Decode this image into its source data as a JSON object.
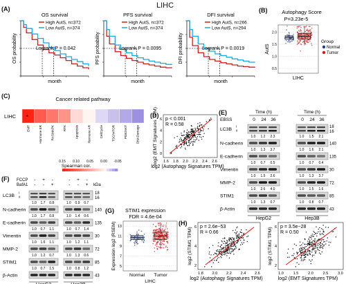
{
  "figure_title": "LIHC",
  "panel_labels": {
    "A": "(A)",
    "B": "(B)",
    "C": "(C)",
    "D": "(D)",
    "E": "(E)",
    "F": "(F)",
    "G": "(G)",
    "H": "(H)"
  },
  "colors": {
    "high": "#c8201e",
    "low": "#1fa7e1",
    "normal": "#1f3e8f",
    "tumor": "#c8201e",
    "fit": "#e02020",
    "band": "#1a1a1a"
  },
  "chart_data": [
    {
      "type": "line",
      "title": "OS survival",
      "xlabel": "month",
      "ylabel": "OS probability",
      "xlim": [
        0,
        120
      ],
      "ylim": [
        0,
        1
      ],
      "legend": [
        "High AutS, n=372",
        "Low AutS, n=374"
      ],
      "annotation": "Logrank  P = 0.042",
      "series": [
        {
          "name": "High AutS, n=372",
          "x": [
            0,
            5,
            10,
            20,
            30,
            40,
            50,
            60,
            70,
            80,
            90,
            100,
            110,
            120
          ],
          "values": [
            1,
            0.88,
            0.78,
            0.66,
            0.56,
            0.48,
            0.42,
            0.38,
            0.33,
            0.28,
            0.22,
            0.18,
            0.15,
            0.12
          ]
        },
        {
          "name": "Low AutS, n=374",
          "x": [
            0,
            5,
            10,
            20,
            30,
            40,
            50,
            60,
            70,
            80,
            90,
            100,
            110,
            120
          ],
          "values": [
            1,
            0.93,
            0.86,
            0.76,
            0.68,
            0.6,
            0.52,
            0.46,
            0.4,
            0.35,
            0.3,
            0.26,
            0.22,
            0.18
          ]
        }
      ]
    },
    {
      "type": "line",
      "title": "PFS survival",
      "xlabel": "month",
      "ylabel": "PFS probability",
      "xlim": [
        0,
        120
      ],
      "ylim": [
        0,
        1
      ],
      "legend": [
        "High AutS, n=372",
        "Low AutS, n=374"
      ],
      "annotation": "Logrank  P = 0.0095",
      "series": [
        {
          "name": "High AutS, n=372",
          "x": [
            0,
            5,
            10,
            20,
            30,
            40,
            50,
            60,
            70,
            80,
            90,
            100,
            110,
            120
          ],
          "values": [
            1,
            0.72,
            0.58,
            0.44,
            0.37,
            0.32,
            0.28,
            0.25,
            0.22,
            0.2,
            0.18,
            0.16,
            0.15,
            0.14
          ]
        },
        {
          "name": "Low AutS, n=374",
          "x": [
            0,
            5,
            10,
            20,
            30,
            40,
            50,
            60,
            70,
            80,
            90,
            100,
            110,
            120
          ],
          "values": [
            1,
            0.84,
            0.72,
            0.56,
            0.48,
            0.42,
            0.37,
            0.33,
            0.3,
            0.27,
            0.25,
            0.23,
            0.21,
            0.2
          ]
        }
      ]
    },
    {
      "type": "line",
      "title": "DFI survival",
      "xlabel": "month",
      "ylabel": "DFI probability",
      "xlim": [
        0,
        120
      ],
      "ylim": [
        0,
        1
      ],
      "legend": [
        "High AutS, n=266",
        "Low AutS, n=294"
      ],
      "annotation": "Logrank  P = 0.0019",
      "series": [
        {
          "name": "High AutS, n=266",
          "x": [
            0,
            5,
            10,
            20,
            30,
            40,
            50,
            60,
            70,
            80,
            90,
            100,
            110,
            120
          ],
          "values": [
            1,
            0.7,
            0.55,
            0.42,
            0.35,
            0.3,
            0.27,
            0.24,
            0.22,
            0.2,
            0.18,
            0.17,
            0.16,
            0.15
          ]
        },
        {
          "name": "Low AutS, n=294",
          "x": [
            0,
            5,
            10,
            20,
            30,
            40,
            50,
            60,
            70,
            80,
            90,
            100,
            110,
            120
          ],
          "values": [
            1,
            0.84,
            0.72,
            0.58,
            0.5,
            0.45,
            0.4,
            0.37,
            0.34,
            0.31,
            0.29,
            0.27,
            0.25,
            0.24
          ]
        }
      ]
    },
    {
      "type": "box",
      "title": "Autophagy Score",
      "annotation": "P=3.23e-5",
      "ylabel": "AutS",
      "xlabel": "LIHC",
      "legend_title": "Group",
      "legend": [
        "Normal",
        "Tumor"
      ],
      "yticks": [
        0.5,
        1.0,
        1.5,
        2.0
      ],
      "ylim": [
        0.3,
        2.3
      ],
      "series": [
        {
          "name": "Normal",
          "q1": 1.7,
          "median": 1.79,
          "q3": 1.85,
          "min": 1.55,
          "max": 1.98
        },
        {
          "name": "Tumor",
          "q1": 1.7,
          "median": 1.82,
          "q3": 1.95,
          "min": 1.45,
          "max": 2.2
        }
      ]
    },
    {
      "type": "heatmap",
      "title": "Cancer related pathway",
      "row": "LIHC",
      "categories": [
        "EMT",
        "Hormone ER",
        "RASMAPK",
        "RTK",
        "Apoptosis",
        "Hormone AR",
        "CellCycle",
        "TSC/mTOR",
        "PI3K/AKT",
        "DNADamage"
      ],
      "values": [
        0.15,
        0.11,
        0.09,
        0.07,
        0.02,
        0.0,
        -0.01,
        -0.02,
        -0.03,
        -0.04
      ],
      "legend_title": "Spearman cor.",
      "legend_ticks": [
        "0.15",
        "0.10",
        "0.05",
        "0.00",
        "-0.05"
      ],
      "star": "*"
    },
    {
      "type": "scatter",
      "xlabel": "log2 (Autophagy Signatures TPM)",
      "ylabel": "log2 (EMT Signatures TPM)",
      "annotation": [
        "p < 0.001",
        "R = 0.58"
      ],
      "xticks": [
        "1.6",
        "1.8",
        "2.0",
        "2.2",
        "2.4",
        "2.6"
      ],
      "yticks": [
        "0",
        "2",
        "4",
        "6"
      ]
    },
    {
      "type": "box",
      "title": "STIM1 expression",
      "annotation": "FDR = 4.6e-04",
      "ylabel": "Expression log2 (RSEM)",
      "xlabel": "LIHC",
      "categories": [
        "Normal",
        "Tumor"
      ],
      "yticks": [
        "5",
        "7",
        "9",
        "11",
        "13"
      ],
      "ylim": [
        4,
        14
      ],
      "series": [
        {
          "name": "Normal",
          "q1": 10.3,
          "median": 10.7,
          "q3": 11.1,
          "min": 9.3,
          "max": 12
        },
        {
          "name": "Tumor",
          "q1": 10.3,
          "median": 11.0,
          "q3": 11.8,
          "min": 8.4,
          "max": 13.3
        }
      ]
    },
    {
      "type": "scatter",
      "xlabel": "log2 (Autophagy Signatures TPM)",
      "ylabel": "log2 (STIM1 TPM)",
      "annotation": [
        "p = 2.6e−53",
        "R = 0.66"
      ],
      "xticks": [
        "1.8",
        "2.0",
        "2.2",
        "2.4",
        "2.6"
      ],
      "yticks": [
        "2",
        "4",
        "6"
      ]
    },
    {
      "type": "scatter",
      "xlabel": "log2 (EMT Signatures TPM)",
      "ylabel": "log2 (STIM1 TPM)",
      "annotation": [
        "p = 3.5e−28",
        "R = 0.50"
      ],
      "xticks": [
        "1.0",
        "1.5",
        "2.0",
        "2.5",
        "3.0"
      ],
      "yticks": [
        "2",
        "4",
        "6"
      ]
    }
  ],
  "panel_e": {
    "ebss": "EBSS",
    "time": "Time (h)",
    "times": [
      "0",
      "24",
      "36"
    ],
    "cells": [
      "HepG2",
      "Hep3B"
    ],
    "rows": [
      {
        "label": "LC3B",
        "sub": [
          "I",
          "II"
        ],
        "kda": [
          "18",
          "16"
        ],
        "q1": [
          "1.0",
          "1.2",
          "2.3"
        ],
        "q2": [
          "1.0",
          "1.5",
          "2.1"
        ]
      },
      {
        "label": "N-cadherin",
        "kda": [
          "140"
        ],
        "q1": [
          "1.0",
          "1.3",
          "3.7"
        ],
        "q2": [
          "1.0",
          "1.6",
          "2.1"
        ]
      },
      {
        "label": "E-cadherin",
        "kda": [
          "135"
        ],
        "q1": [
          "1.0",
          "0.7",
          "0.5"
        ],
        "q2": [
          "1.0",
          "0.7",
          "0.4"
        ]
      },
      {
        "label": "Vimentin",
        "kda": [
          "30"
        ],
        "q1": [
          "1.0",
          "1.5",
          "2.6"
        ],
        "q2": [
          "1.0",
          "1.3",
          "3.7"
        ]
      },
      {
        "label": "MMP-2",
        "kda": [
          "72"
        ],
        "q1": [
          "1.0",
          "2.6",
          "4.0"
        ],
        "q2": [
          "1.0",
          "1.5",
          "1.6"
        ]
      },
      {
        "label": "STIM1",
        "kda": [
          "85"
        ],
        "q1": [
          "1.0",
          "1.3",
          "0.7"
        ],
        "q2": [
          "1.0",
          "0.8",
          "0.7"
        ]
      },
      {
        "label": "β-Actin",
        "kda": [
          "43"
        ]
      }
    ]
  },
  "panel_f": {
    "treat": [
      "FCCP",
      "BafA1"
    ],
    "signs": [
      [
        "-",
        "+",
        "-"
      ],
      [
        "-",
        "-",
        "+"
      ]
    ],
    "kda_unit": "kDa",
    "cells": [
      "HepG2",
      "Hep3B"
    ],
    "rows": [
      {
        "label": "LC3B",
        "sub": [
          "I",
          "II"
        ],
        "kda": [
          "18",
          "16"
        ],
        "q1": [
          "1.0",
          "1.7",
          "0.8"
        ],
        "q2": [
          "1.0",
          "0.9",
          "0.7"
        ]
      },
      {
        "label": "N-cadherin",
        "kda": [
          "140"
        ],
        "q1": [
          "1.0",
          "1.7",
          "0.8"
        ],
        "q2": [
          "1.0",
          "1.4",
          "0.6"
        ]
      },
      {
        "label": "E-cadherin",
        "kda": [
          "135"
        ],
        "q1": [
          "1.0",
          "0.7",
          "1.1"
        ],
        "q2": [
          "1.0",
          "0.7",
          "1.4"
        ]
      },
      {
        "label": "Vimentin",
        "kda": [
          "30"
        ],
        "q1": [
          "1.0",
          "1.6",
          "1.1"
        ],
        "q2": [
          "1.0",
          "1.2",
          "1.1"
        ]
      },
      {
        "label": "MMP-2",
        "kda": [
          "72"
        ],
        "q1": [
          "1.0",
          "1.2",
          "0.7"
        ],
        "q2": [
          "1.0",
          "1.3",
          "0.6"
        ]
      },
      {
        "label": "STIM1",
        "kda": [
          "85"
        ],
        "q1": [
          "1.0",
          "0.7",
          "1.5"
        ],
        "q2": [
          "1.0",
          "0.8",
          "1.2"
        ]
      },
      {
        "label": "β-Actin",
        "kda": [
          "43"
        ]
      }
    ]
  }
}
